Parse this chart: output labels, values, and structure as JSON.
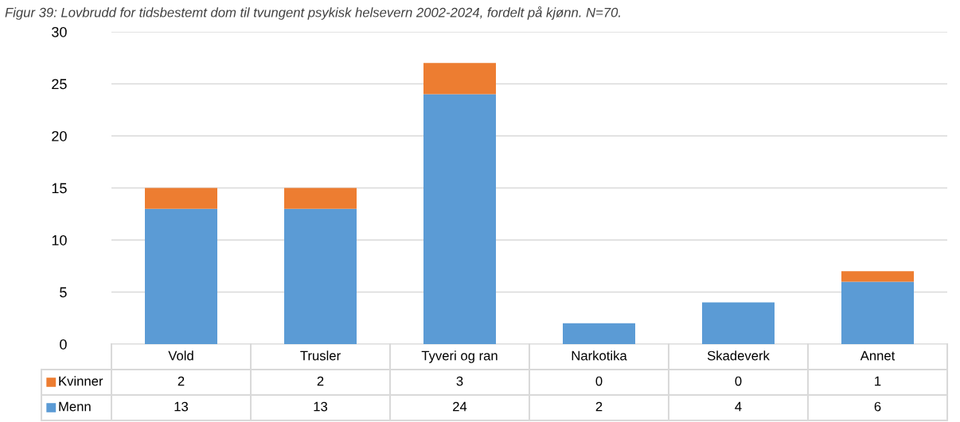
{
  "chart_data": {
    "type": "bar",
    "title": "Figur 39: Lovbrudd for tidsbestemt dom til tvungent psykisk helsevern 2002-2024, fordelt på kjønn. N=70.",
    "categories": [
      "Vold",
      "Trusler",
      "Tyveri og ran",
      "Narkotika",
      "Skadeverk",
      "Annet"
    ],
    "series": [
      {
        "name": "Menn",
        "color": "#5b9bd5",
        "values": [
          13,
          13,
          24,
          2,
          4,
          6
        ]
      },
      {
        "name": "Kvinner",
        "color": "#ed7d31",
        "values": [
          2,
          2,
          3,
          0,
          0,
          1
        ]
      }
    ],
    "stacked": true,
    "data_labels": true,
    "ylim": [
      0,
      30
    ],
    "yticks": [
      0,
      5,
      10,
      15,
      20,
      25,
      30
    ],
    "grid": "y",
    "legend": "left"
  }
}
